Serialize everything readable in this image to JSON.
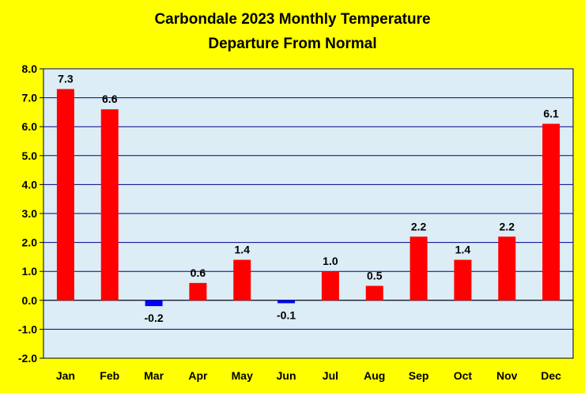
{
  "chart_data": {
    "type": "bar",
    "title_lines": [
      "Carbondale 2023 Monthly Temperature",
      "Departure From Normal"
    ],
    "categories": [
      "Jan",
      "Feb",
      "Mar",
      "Apr",
      "May",
      "Jun",
      "Jul",
      "Aug",
      "Sep",
      "Oct",
      "Nov",
      "Dec"
    ],
    "values": [
      7.3,
      6.6,
      -0.2,
      0.6,
      1.4,
      -0.1,
      1.0,
      0.5,
      2.2,
      1.4,
      2.2,
      6.1
    ],
    "data_labels": [
      "7.3",
      "6.6",
      "-0.2",
      "0.6",
      "1.4",
      "-0.1",
      "1.0",
      "0.5",
      "2.2",
      "1.4",
      "2.2",
      "6.1"
    ],
    "ylim": [
      -2.0,
      8.0
    ],
    "yticks": [
      "-2.0",
      "-1.0",
      "0.0",
      "1.0",
      "2.0",
      "3.0",
      "4.0",
      "5.0",
      "6.0",
      "7.0",
      "8.0"
    ],
    "xlabel": "",
    "ylabel": "",
    "grid": true,
    "colors": {
      "background": "#ffff00",
      "plot_area": "#dcedf5",
      "gridline": "#00008b",
      "positive_bar": "#ff0000",
      "negative_bar": "#0000ff"
    }
  }
}
